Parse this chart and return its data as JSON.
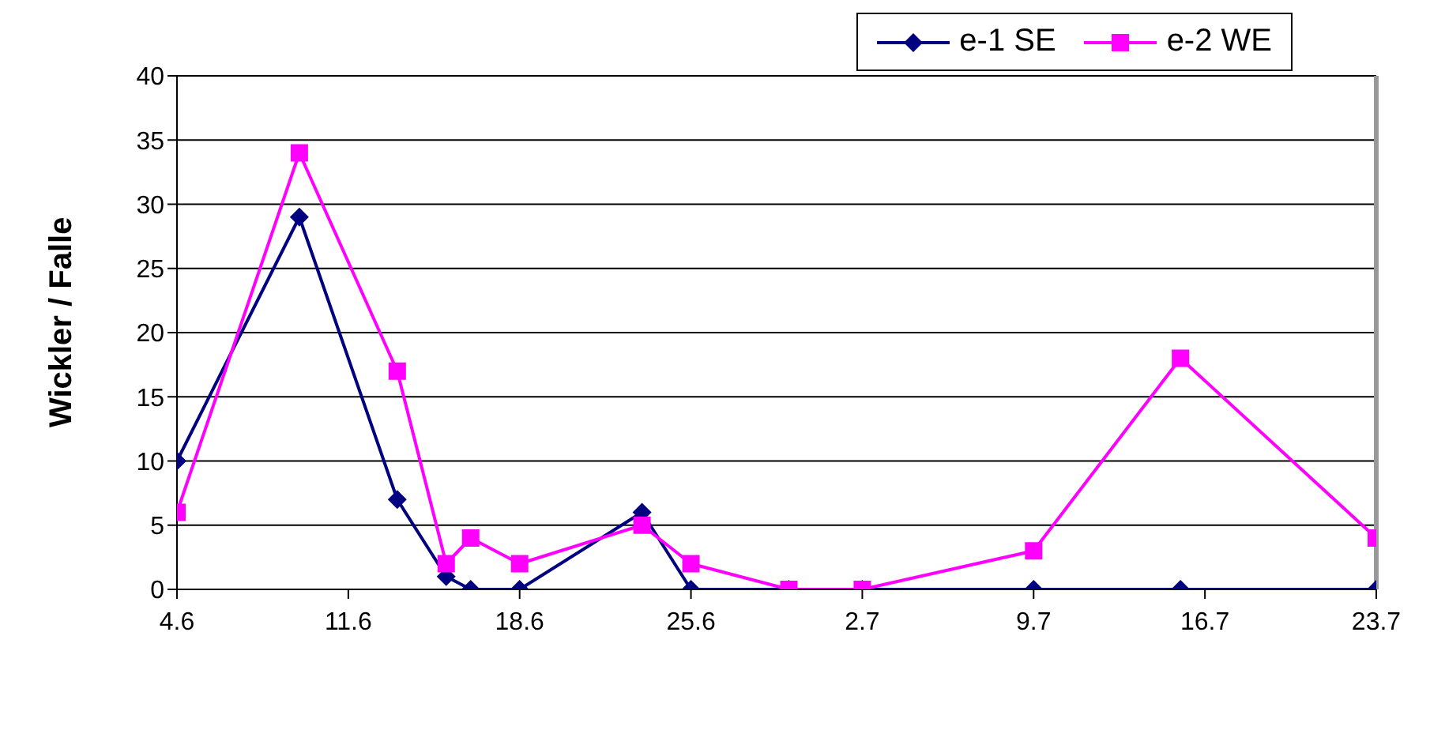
{
  "chart_data": {
    "type": "line",
    "ylabel": "Wickler / Falle",
    "x": [
      "--06-04",
      "--06-09",
      "--06-13",
      "--06-15",
      "--06-16",
      "--06-18",
      "--06-23",
      "--06-25",
      "--06-29",
      "--07-02",
      "--07-09",
      "--07-15",
      "--07-23"
    ],
    "series": [
      {
        "name": "e-1 SE",
        "color": "#000080",
        "marker": "diamond",
        "values": [
          10,
          29,
          7,
          1,
          0,
          0,
          6,
          0,
          0,
          0,
          0,
          0,
          0
        ]
      },
      {
        "name": "e-2 WE",
        "color": "#ff00ff",
        "marker": "square",
        "values": [
          6,
          34,
          17,
          2,
          4,
          2,
          5,
          2,
          0,
          0,
          3,
          18,
          4
        ]
      }
    ],
    "xlim": [
      "--06-04",
      "--07-23"
    ],
    "xticks": [
      {
        "value": "--06-04",
        "label": "4.6"
      },
      {
        "value": "--06-11",
        "label": "11.6"
      },
      {
        "value": "--06-18",
        "label": "18.6"
      },
      {
        "value": "--06-25",
        "label": "25.6"
      },
      {
        "value": "--07-02",
        "label": "2.7"
      },
      {
        "value": "--07-09",
        "label": "9.7"
      },
      {
        "value": "--07-16",
        "label": "16.7"
      },
      {
        "value": "--07-23",
        "label": "23.7"
      }
    ],
    "ylim": [
      0,
      40
    ],
    "yticks": [
      0,
      5,
      10,
      15,
      20,
      25,
      30,
      35,
      40
    ],
    "grid": "y",
    "legend": "top right",
    "line_style": "solid"
  }
}
